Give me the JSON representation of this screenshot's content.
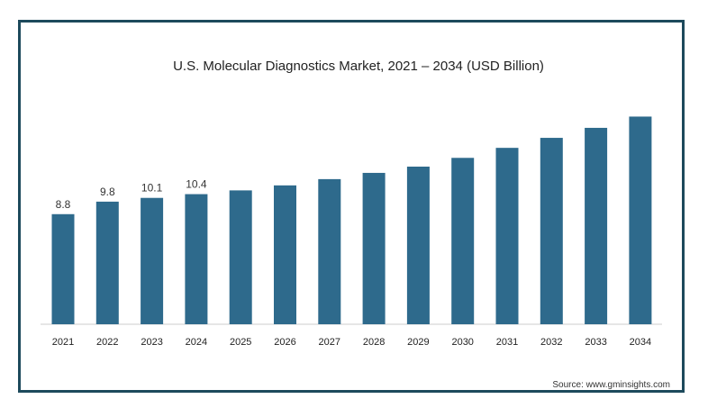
{
  "chart_data": {
    "type": "bar",
    "title": "U.S. Molecular Diagnostics Market, 2021 – 2034 (USD Billion)",
    "categories": [
      "2021",
      "2022",
      "2023",
      "2024",
      "2025",
      "2026",
      "2027",
      "2028",
      "2029",
      "2030",
      "2031",
      "2032",
      "2033",
      "2034"
    ],
    "values": [
      8.8,
      9.8,
      10.1,
      10.4,
      10.7,
      11.1,
      11.6,
      12.1,
      12.6,
      13.3,
      14.1,
      14.9,
      15.7,
      16.6
    ],
    "data_labels": [
      "8.8",
      "9.8",
      "10.1",
      "10.4",
      "",
      "",
      "",
      "",
      "",
      "",
      "",
      "",
      "",
      ""
    ],
    "ylim": [
      0,
      18
    ],
    "grid": false,
    "bar_color": "#2e6a8c"
  },
  "source": "Source: www.gminsights.com",
  "colors": {
    "frame": "#1d4a5c",
    "bar": "#2e6a8c",
    "axis": "#cccccc"
  }
}
